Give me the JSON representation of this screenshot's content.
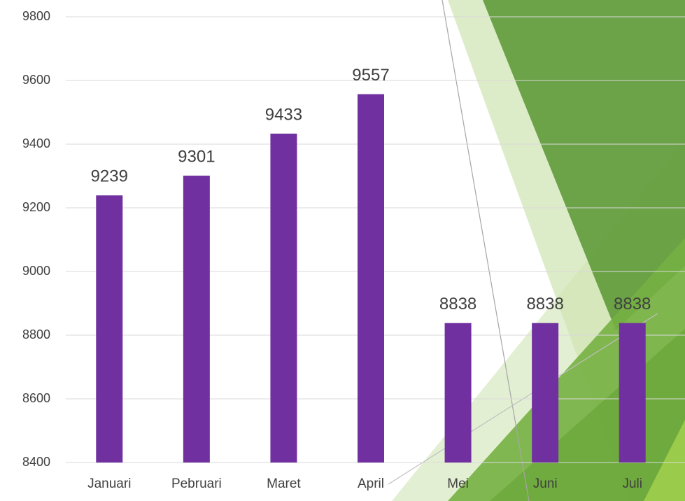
{
  "chart_data": {
    "type": "bar",
    "categories": [
      "Januari",
      "Pebruari",
      "Maret",
      "April",
      "Mei",
      "Juni",
      "Juli"
    ],
    "values": [
      9239,
      9301,
      9433,
      9557,
      8838,
      8838,
      8838
    ],
    "color": "#7030a0",
    "ylim": [
      8400,
      9800
    ],
    "yticks": [
      8400,
      8600,
      8800,
      9000,
      9200,
      9400,
      9600,
      9800
    ],
    "grid": true
  }
}
